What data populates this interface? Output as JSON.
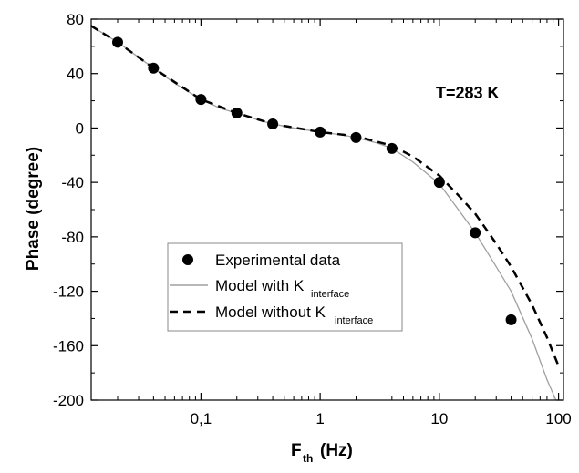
{
  "chart_data": {
    "type": "scatter",
    "annotation": "T=283 K",
    "ylabel": "Phase (degree)",
    "xlabel": {
      "main": "F",
      "sub": "th",
      "unit": "(Hz)"
    },
    "xscale": "log",
    "xlim": [
      0.012,
      110
    ],
    "ylim": [
      -200,
      80
    ],
    "x_ticks": [
      {
        "value": 0.1,
        "label": "0,1"
      },
      {
        "value": 1,
        "label": "1"
      },
      {
        "value": 10,
        "label": "10"
      },
      {
        "value": 100,
        "label": "100"
      }
    ],
    "y_ticks": [
      {
        "value": 80,
        "label": "80"
      },
      {
        "value": 40,
        "label": "40"
      },
      {
        "value": 0,
        "label": "0"
      },
      {
        "value": -40,
        "label": "-40"
      },
      {
        "value": -80,
        "label": "-80"
      },
      {
        "value": -120,
        "label": "-120"
      },
      {
        "value": -160,
        "label": "-160"
      },
      {
        "value": -200,
        "label": "-200"
      }
    ],
    "legend": {
      "placement": "lower-left",
      "entries": [
        {
          "name": "Experimental data",
          "style": "marker"
        },
        {
          "name": "Model with K",
          "sub": "interface",
          "style": "solid"
        },
        {
          "name": "Model without K",
          "sub": "interface",
          "style": "dashed"
        }
      ]
    },
    "series": [
      {
        "name": "Experimental data",
        "style": "marker",
        "points": [
          [
            0.02,
            63
          ],
          [
            0.04,
            44
          ],
          [
            0.1,
            21
          ],
          [
            0.2,
            11
          ],
          [
            0.4,
            3
          ],
          [
            1,
            -3
          ],
          [
            2,
            -7
          ],
          [
            4,
            -15
          ],
          [
            10,
            -40
          ],
          [
            20,
            -77
          ],
          [
            40,
            -141
          ]
        ]
      },
      {
        "name": "Model with K interface",
        "style": "solid",
        "color": "#a0a0a0",
        "points": [
          [
            0.012,
            75
          ],
          [
            0.02,
            63
          ],
          [
            0.03,
            52
          ],
          [
            0.04,
            44
          ],
          [
            0.06,
            33
          ],
          [
            0.1,
            21
          ],
          [
            0.15,
            14
          ],
          [
            0.2,
            11
          ],
          [
            0.3,
            6
          ],
          [
            0.4,
            3
          ],
          [
            0.6,
            0
          ],
          [
            1,
            -3
          ],
          [
            1.5,
            -5
          ],
          [
            2,
            -7
          ],
          [
            3,
            -11
          ],
          [
            4,
            -15
          ],
          [
            6,
            -25
          ],
          [
            8,
            -34
          ],
          [
            10,
            -41
          ],
          [
            15,
            -62
          ],
          [
            20,
            -77
          ],
          [
            30,
            -102
          ],
          [
            40,
            -120
          ],
          [
            60,
            -155
          ],
          [
            80,
            -185
          ],
          [
            95,
            -200
          ]
        ]
      },
      {
        "name": "Model without K interface",
        "style": "dashed",
        "color": "#000000",
        "points": [
          [
            0.012,
            75
          ],
          [
            0.02,
            63
          ],
          [
            0.04,
            44
          ],
          [
            0.1,
            21
          ],
          [
            0.2,
            11
          ],
          [
            0.4,
            3
          ],
          [
            1,
            -3
          ],
          [
            2,
            -6
          ],
          [
            4,
            -13
          ],
          [
            6,
            -21
          ],
          [
            10,
            -35
          ],
          [
            15,
            -51
          ],
          [
            20,
            -63
          ],
          [
            30,
            -85
          ],
          [
            40,
            -102
          ],
          [
            60,
            -130
          ],
          [
            80,
            -154
          ],
          [
            100,
            -175
          ]
        ]
      }
    ]
  }
}
